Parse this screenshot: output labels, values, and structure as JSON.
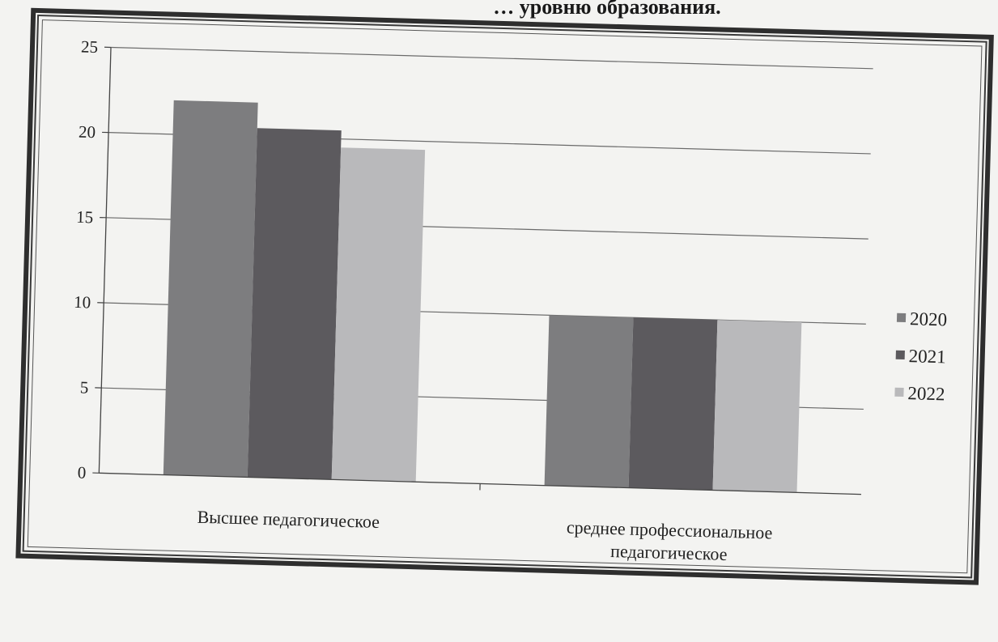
{
  "page": {
    "title_fragment": "… уровню образования."
  },
  "chart_data": {
    "type": "bar",
    "categories": [
      [
        "Высшее педагогическое"
      ],
      [
        "среднее профессиональное",
        "педагогическое"
      ]
    ],
    "series": [
      {
        "name": "2020",
        "values": [
          22,
          10
        ],
        "color": "#7d7d7f"
      },
      {
        "name": "2021",
        "values": [
          20.5,
          10
        ],
        "color": "#5c5a5e"
      },
      {
        "name": "2022",
        "values": [
          19.5,
          10
        ],
        "color": "#b9b9bb"
      }
    ],
    "ylim": [
      0,
      25
    ],
    "yticks": [
      "0",
      "5",
      "10",
      "15",
      "20",
      "25"
    ],
    "grid": true,
    "legend": "right",
    "xlabel": "",
    "ylabel": ""
  }
}
